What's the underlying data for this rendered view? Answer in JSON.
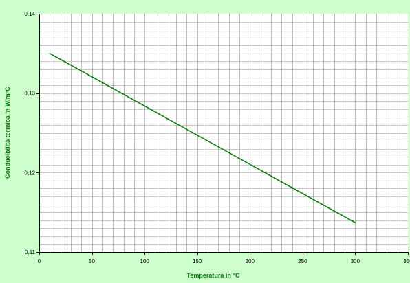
{
  "chart_data": {
    "type": "line",
    "xlabel": "Temperatura in °C",
    "ylabel": "Conducibilità termica in W/m°C",
    "xlim": [
      0,
      350
    ],
    "ylim": [
      0.11,
      0.14
    ],
    "x_ticks": [
      0,
      50,
      100,
      150,
      200,
      250,
      300,
      350
    ],
    "x_tick_labels": [
      "0",
      "50",
      "100",
      "150",
      "200",
      "250",
      "300",
      "350"
    ],
    "y_ticks": [
      0.11,
      0.12,
      0.13,
      0.14
    ],
    "y_tick_labels": [
      "0,11",
      "0,12",
      "0,13",
      "0,14"
    ],
    "x_minor_step": 10,
    "y_minor_step": 0.001,
    "grid": true,
    "series": [
      {
        "x": [
          10,
          300
        ],
        "y": [
          0.135,
          0.1137
        ]
      }
    ]
  },
  "colors": {
    "background": "#ccffcc",
    "plot_background": "#ffffff",
    "grid": "#909090",
    "axis": "#000000",
    "series": "#008000",
    "axis_title": "#008000"
  }
}
